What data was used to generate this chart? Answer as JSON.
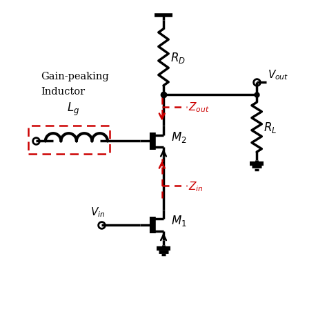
{
  "bg_color": "#ffffff",
  "line_color": "#000000",
  "red_color": "#cc0000",
  "lw_main": 2.5,
  "lw_thick": 4.0,
  "lw_red": 1.8,
  "figsize": [
    4.74,
    4.56
  ],
  "dpi": 100,
  "xlim": [
    0,
    10
  ],
  "ylim": [
    0,
    10
  ]
}
